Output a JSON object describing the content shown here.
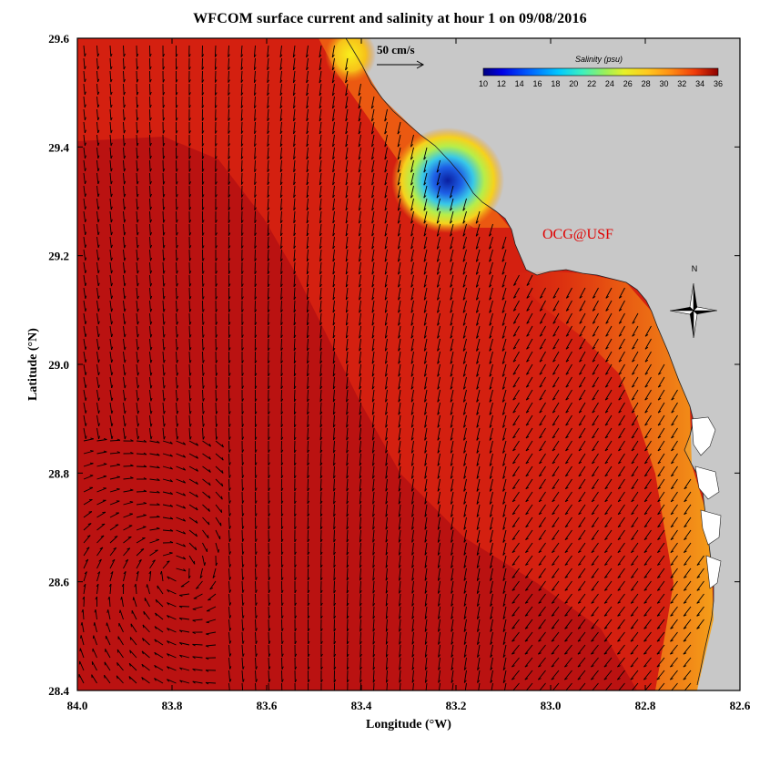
{
  "title": "WFCOM surface current and salinity at hour 1 on 09/08/2016",
  "xlabel": "Longitude (°W)",
  "ylabel": "Latitude (°N)",
  "x_ticks": [
    "84.0",
    "83.8",
    "83.6",
    "83.4",
    "83.2",
    "83.0",
    "82.8",
    "82.6"
  ],
  "y_ticks": [
    "29.6",
    "29.4",
    "29.2",
    "29.0",
    "28.8",
    "28.6",
    "28.4"
  ],
  "watermark": "OCG@USF",
  "compass_label": "N",
  "scale_label": "50 cm/s",
  "colorbar": {
    "title": "Salinity (psu)",
    "ticks": [
      "10",
      "12",
      "14",
      "16",
      "18",
      "20",
      "22",
      "24",
      "26",
      "28",
      "30",
      "32",
      "34",
      "36"
    ]
  },
  "colors": {
    "land": "#c8c8c8",
    "ocean_high": "#b01010",
    "ocean_mid": "#e12a10",
    "accent": "#e00000"
  },
  "chart_data": {
    "type": "heatmap",
    "title": "WFCOM surface current and salinity at hour 1 on 09/08/2016",
    "xlabel": "Longitude (°W)",
    "ylabel": "Latitude (°N)",
    "xlim": [
      84.0,
      82.6
    ],
    "ylim": [
      28.4,
      29.6
    ],
    "colorbar_range": [
      10,
      36
    ],
    "colorbar_unit": "Salinity (psu)",
    "vector_scale": "50 cm/s",
    "features": [
      {
        "name": "low salinity plume",
        "lon": 83.19,
        "lat": 29.33,
        "min_salinity": 11
      },
      {
        "name": "fresher coastal band",
        "lon": 83.35,
        "lat": 29.5,
        "salinity": 26
      }
    ]
  }
}
